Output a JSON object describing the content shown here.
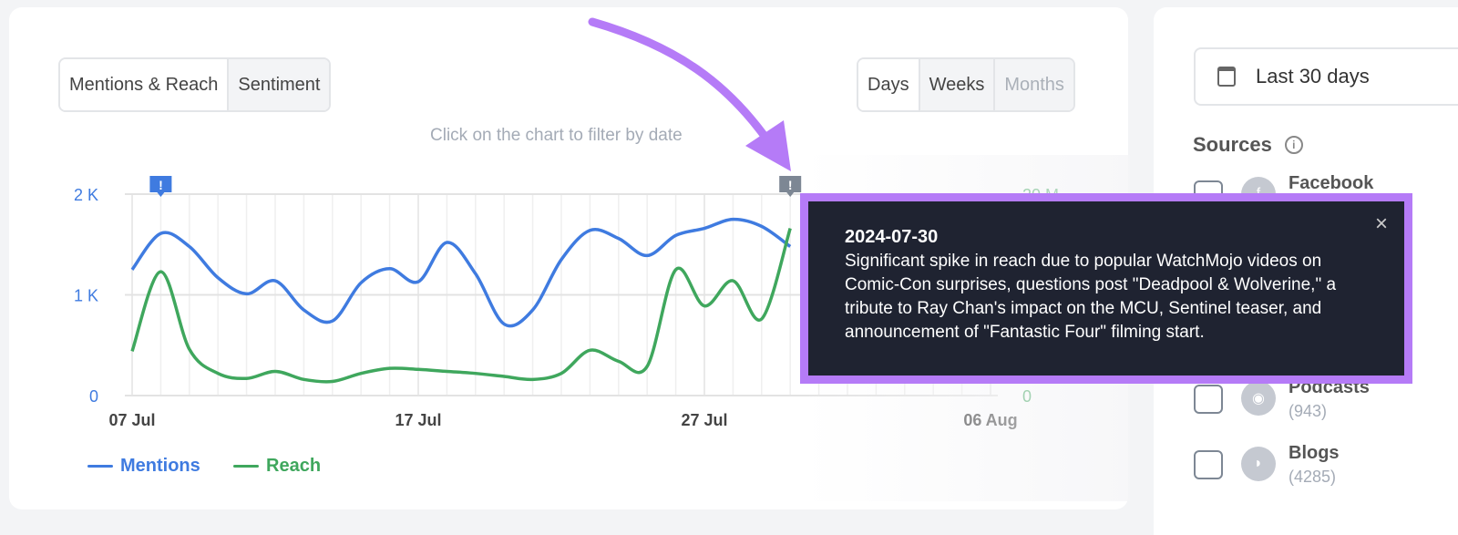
{
  "tabs": {
    "metric": [
      {
        "label": "Mentions & Reach",
        "active": true
      },
      {
        "label": "Sentiment",
        "active": false
      }
    ],
    "period": [
      {
        "label": "Days",
        "active": true
      },
      {
        "label": "Weeks",
        "active": false
      },
      {
        "label": "Months",
        "active": false,
        "disabled": true
      }
    ]
  },
  "hint": "Click on the chart to filter by date",
  "chart_data": {
    "type": "line",
    "x": [
      "07 Jul",
      "08 Jul",
      "09 Jul",
      "10 Jul",
      "11 Jul",
      "12 Jul",
      "13 Jul",
      "14 Jul",
      "15 Jul",
      "16 Jul",
      "17 Jul",
      "18 Jul",
      "19 Jul",
      "20 Jul",
      "21 Jul",
      "22 Jul",
      "23 Jul",
      "24 Jul",
      "25 Jul",
      "26 Jul",
      "27 Jul",
      "28 Jul",
      "29 Jul",
      "30 Jul"
    ],
    "x_ticks": [
      "07 Jul",
      "17 Jul",
      "27 Jul",
      "06 Aug"
    ],
    "y_left_ticks": [
      "0",
      "1 K",
      "2 K"
    ],
    "y_right_ticks": [
      "0",
      "20 M"
    ],
    "ylim_left": [
      0,
      2000
    ],
    "ylim_right": [
      0,
      20000000
    ],
    "grid": true,
    "legend_position": "bottom-left",
    "series": [
      {
        "name": "Mentions",
        "color": "#3f7be0",
        "axis": "left",
        "values": [
          1250,
          1610,
          1480,
          1170,
          1010,
          1140,
          850,
          740,
          1120,
          1260,
          1130,
          1520,
          1210,
          710,
          850,
          1350,
          1640,
          1560,
          1390,
          1590,
          1660,
          1750,
          1680,
          1480
        ]
      },
      {
        "name": "Reach",
        "color": "#3fa75d",
        "axis": "right",
        "values": [
          4400000,
          12300000,
          4600000,
          2200000,
          1700000,
          2400000,
          1600000,
          1400000,
          2200000,
          2700000,
          2600000,
          2400000,
          2200000,
          1900000,
          1600000,
          2200000,
          4500000,
          3400000,
          2900000,
          12500000,
          8900000,
          11400000,
          7600000,
          16600000
        ]
      }
    ],
    "annotations": [
      {
        "x": "08 Jul",
        "color": "#3f7be0"
      },
      {
        "x": "30 Jul",
        "color": "#7d8794"
      }
    ]
  },
  "tooltip": {
    "date": "2024-07-30",
    "text": "Significant spike in reach due to popular WatchMojo videos on Comic-Con surprises, questions post \"Deadpool & Wolverine,\" a tribute to Ray Chan's impact on the MCU, Sentinel teaser, and announcement of \"Fantastic Four\" filming start.",
    "close": "×"
  },
  "sidebar": {
    "range": "Last 30 days",
    "sources_title": "Sources",
    "sources": [
      {
        "name": "Facebook",
        "count": ""
      },
      {
        "name": "Podcasts",
        "count": "(943)"
      },
      {
        "name": "Blogs",
        "count": "(4285)"
      }
    ]
  },
  "highlight_color": "#b57bf7"
}
